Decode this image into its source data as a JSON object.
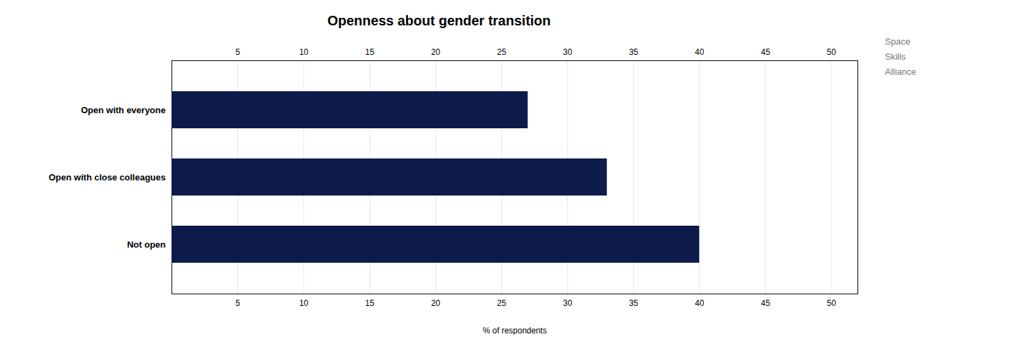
{
  "chart_data": {
    "type": "bar",
    "title": "Openness about gender transition",
    "orientation": "horizontal",
    "categories": [
      "Open with everyone",
      "Open with close colleagues",
      "Not open"
    ],
    "values": [
      27,
      33,
      40
    ],
    "color": "#0d1b4b",
    "xlabel": "% of respondents",
    "xlim": [
      0,
      52
    ],
    "xticks": [
      5,
      10,
      15,
      20,
      25,
      30,
      35,
      40,
      45,
      50
    ],
    "grid": true,
    "annotations": [
      "Space",
      "Skills",
      "Alliance"
    ]
  }
}
